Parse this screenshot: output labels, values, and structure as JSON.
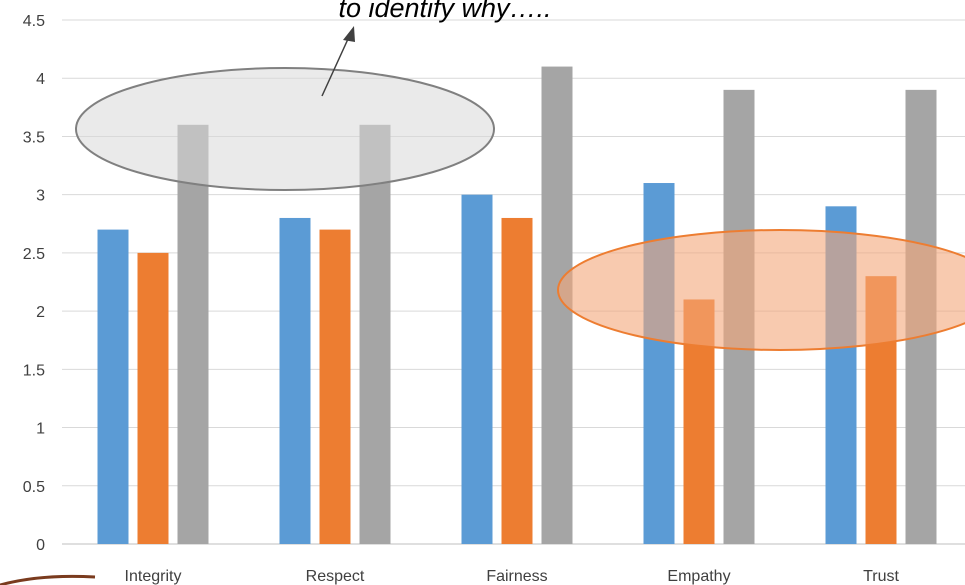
{
  "annotation": "to identify why…..",
  "chart_data": {
    "type": "bar",
    "categories": [
      "Integrity",
      "Respect",
      "Fairness",
      "Empathy",
      "Trust"
    ],
    "series": [
      {
        "values": [
          2.7,
          2.8,
          3.0,
          3.1,
          2.9
        ],
        "color": "#5B9BD5"
      },
      {
        "values": [
          2.5,
          2.7,
          2.8,
          2.1,
          2.3
        ],
        "color": "#ED7D31"
      },
      {
        "values": [
          3.6,
          3.6,
          4.1,
          3.9,
          3.9
        ],
        "color": "#A5A5A5"
      }
    ],
    "ylim": [
      0,
      4.5
    ],
    "yticks": [
      "0",
      "0.5",
      "1",
      "1.5",
      "2",
      "2.5",
      "3",
      "3.5",
      "4",
      "4.5"
    ],
    "grid": true,
    "legend": "none",
    "highlights": [
      {
        "shape": "ellipse",
        "color": "#D9D9D9",
        "covers": "Integrity–Respect, about 3.1–4.0",
        "note": "gray ellipse with arrow to annotation"
      },
      {
        "shape": "ellipse",
        "color": "#F4A77A",
        "covers": "Empathy–Trust, about 1.7–2.7"
      }
    ]
  }
}
